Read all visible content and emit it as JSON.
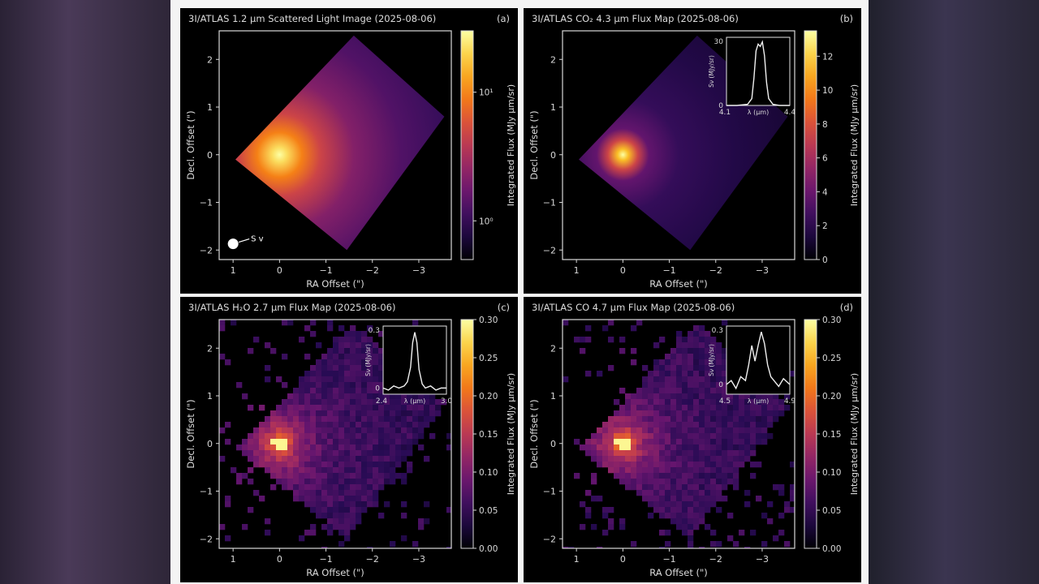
{
  "figure": {
    "colormap": "inferno",
    "axis_label_x": "RA Offset (\")",
    "axis_label_y": "Decl. Offset (\")",
    "colorbar_label": "Integrated Flux (MJy μm/sr)"
  },
  "chart_data": [
    {
      "type": "heatmap",
      "panel": "(a)",
      "title": "3I/ATLAS 1.2 μm Scattered Light Image (2025-08-06)",
      "xlabel": "RA Offset (\")",
      "ylabel": "Decl. Offset (\")",
      "x_ticks": [
        "1",
        "0",
        "−1",
        "−2",
        "−3"
      ],
      "y_ticks": [
        "2",
        "1",
        "0",
        "−1",
        "−2"
      ],
      "xlim": [
        1.3,
        -3.7
      ],
      "ylim": [
        -2.2,
        2.6
      ],
      "colorbar": {
        "label": "Integrated Flux (MJy μm/sr)",
        "scale": "log",
        "ticks": [
          "10¹",
          "10⁰"
        ],
        "range": [
          0.5,
          30
        ]
      },
      "peak": {
        "x": 0,
        "y": 0
      },
      "annotation": "S v",
      "image_style": "smooth"
    },
    {
      "type": "heatmap",
      "panel": "(b)",
      "title": "3I/ATLAS CO₂ 4.3 μm Flux Map (2025-08-06)",
      "xlabel": "RA Offset (\")",
      "ylabel": "Decl. Offset (\")",
      "x_ticks": [
        "1",
        "0",
        "−1",
        "−2",
        "−3"
      ],
      "y_ticks": [
        "2",
        "1",
        "0",
        "−1",
        "−2"
      ],
      "xlim": [
        1.3,
        -3.7
      ],
      "ylim": [
        -2.2,
        2.6
      ],
      "colorbar": {
        "label": "Integrated Flux (MJy μm/sr)",
        "scale": "linear",
        "ticks": [
          "0",
          "2",
          "4",
          "6",
          "8",
          "10",
          "12"
        ],
        "range": [
          0,
          13.5
        ]
      },
      "peak": {
        "x": 0,
        "y": 0
      },
      "image_style": "smooth",
      "inset": {
        "xlabel": "λ (μm)",
        "ylabel": "Sν (MJy/sr)",
        "x_ticks": [
          "4.1",
          "4.4"
        ],
        "y_ticks": [
          "30",
          "0"
        ],
        "xlim": [
          4.1,
          4.4
        ],
        "ylim": [
          0,
          30
        ],
        "spectrum_x": [
          4.1,
          4.15,
          4.2,
          4.22,
          4.23,
          4.24,
          4.25,
          4.26,
          4.27,
          4.28,
          4.29,
          4.3,
          4.32,
          4.35,
          4.4
        ],
        "spectrum_y": [
          0,
          0,
          0.5,
          3,
          12,
          24,
          27,
          26,
          28,
          22,
          10,
          3,
          0.5,
          0,
          0
        ]
      }
    },
    {
      "type": "heatmap",
      "panel": "(c)",
      "title": "3I/ATLAS H₂O 2.7 μm Flux Map (2025-08-06)",
      "xlabel": "RA Offset (\")",
      "ylabel": "Decl. Offset (\")",
      "x_ticks": [
        "1",
        "0",
        "−1",
        "−2",
        "−3"
      ],
      "y_ticks": [
        "2",
        "1",
        "0",
        "−1",
        "−2"
      ],
      "xlim": [
        1.3,
        -3.7
      ],
      "ylim": [
        -2.2,
        2.6
      ],
      "colorbar": {
        "label": "Integrated Flux (MJy μm/sr)",
        "scale": "linear",
        "ticks": [
          "0.00",
          "0.05",
          "0.10",
          "0.15",
          "0.20",
          "0.25",
          "0.30"
        ],
        "range": [
          0,
          0.3
        ]
      },
      "peak": {
        "x": 0,
        "y": 0
      },
      "image_style": "pixelated",
      "inset": {
        "xlabel": "λ (μm)",
        "ylabel": "Sν (MJy/sr)",
        "x_ticks": [
          "2.4",
          "3.0"
        ],
        "y_ticks": [
          "0.3",
          "0"
        ],
        "xlim": [
          2.4,
          3.0
        ],
        "ylim": [
          -0.03,
          0.3
        ],
        "spectrum_x": [
          2.4,
          2.45,
          2.5,
          2.55,
          2.6,
          2.63,
          2.66,
          2.68,
          2.7,
          2.72,
          2.74,
          2.77,
          2.8,
          2.85,
          2.9,
          2.95,
          3.0
        ],
        "spectrum_y": [
          0.0,
          -0.01,
          0.01,
          0.0,
          0.01,
          0.03,
          0.1,
          0.22,
          0.27,
          0.22,
          0.09,
          0.02,
          0.0,
          0.01,
          -0.01,
          0.0,
          0.0
        ]
      }
    },
    {
      "type": "heatmap",
      "panel": "(d)",
      "title": "3I/ATLAS CO 4.7 μm Flux Map (2025-08-06)",
      "xlabel": "RA Offset (\")",
      "ylabel": "Decl. Offset (\")",
      "x_ticks": [
        "1",
        "0",
        "−1",
        "−2",
        "−3"
      ],
      "y_ticks": [
        "2",
        "1",
        "0",
        "−1",
        "−2"
      ],
      "xlim": [
        1.3,
        -3.7
      ],
      "ylim": [
        -2.2,
        2.6
      ],
      "colorbar": {
        "label": "Integrated Flux (MJy μm/sr)",
        "scale": "linear",
        "ticks": [
          "0.00",
          "0.05",
          "0.10",
          "0.15",
          "0.20",
          "0.25",
          "0.30"
        ],
        "range": [
          0,
          0.3
        ]
      },
      "peak": {
        "x": 0,
        "y": 0
      },
      "image_style": "pixelated",
      "inset": {
        "xlabel": "λ (μm)",
        "ylabel": "Sν (MJy/sr)",
        "x_ticks": [
          "4.5",
          "4.9"
        ],
        "y_ticks": [
          "0.3",
          "0"
        ],
        "xlim": [
          4.5,
          4.9
        ],
        "ylim": [
          -0.05,
          0.3
        ],
        "spectrum_x": [
          4.5,
          4.53,
          4.56,
          4.59,
          4.62,
          4.64,
          4.66,
          4.68,
          4.7,
          4.72,
          4.74,
          4.76,
          4.78,
          4.8,
          4.83,
          4.86,
          4.9
        ],
        "spectrum_y": [
          0.0,
          0.02,
          -0.02,
          0.04,
          0.02,
          0.1,
          0.2,
          0.12,
          0.2,
          0.27,
          0.21,
          0.1,
          0.04,
          0.02,
          -0.01,
          0.03,
          0.0
        ]
      }
    }
  ]
}
